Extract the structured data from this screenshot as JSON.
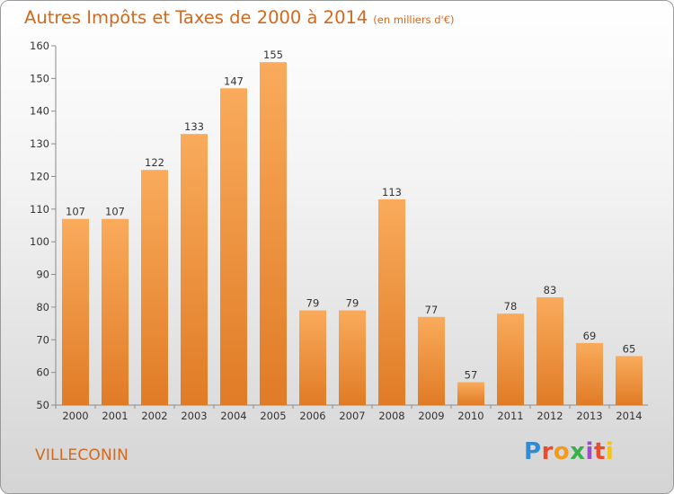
{
  "title": "Autres Impôts et Taxes de 2000 à 2014",
  "title_unit": "(en milliers d'€)",
  "place": "VILLECONIN",
  "logo": "Proxiti",
  "logo_letters": [
    "P",
    "r",
    "o",
    "x",
    "i",
    "t",
    "i"
  ],
  "colors": {
    "bar_light": "#f9ab5b",
    "bar_dark": "#e07b26",
    "accent_text": "#d2691e"
  },
  "chart_data": {
    "type": "bar",
    "categories": [
      "2000",
      "2001",
      "2002",
      "2003",
      "2004",
      "2005",
      "2006",
      "2007",
      "2008",
      "2009",
      "2010",
      "2011",
      "2012",
      "2013",
      "2014"
    ],
    "values": [
      107,
      107,
      122,
      133,
      147,
      155,
      79,
      79,
      113,
      77,
      57,
      78,
      83,
      69,
      65
    ],
    "ylim": [
      50,
      160
    ],
    "yticks": [
      50,
      60,
      70,
      80,
      90,
      100,
      110,
      120,
      130,
      140,
      150,
      160
    ],
    "grid": false,
    "legend": "none"
  }
}
